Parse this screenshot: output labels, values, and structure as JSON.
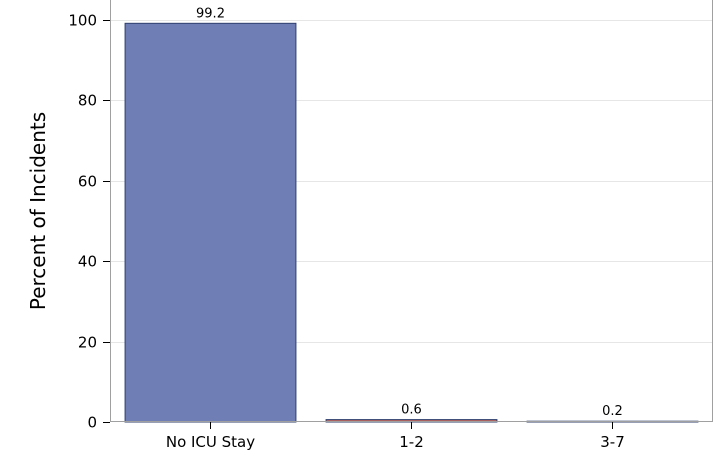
{
  "chart_data": {
    "type": "bar",
    "title": "",
    "xlabel": "",
    "ylabel": "Percent of Incidents",
    "categories": [
      "No ICU Stay",
      "1-2",
      "3-7"
    ],
    "values": [
      99.2,
      0.6,
      0.2
    ],
    "data_labels": [
      "99.2",
      "0.6",
      "0.2"
    ],
    "ylim": [
      0,
      105
    ],
    "yticks": [
      0,
      20,
      40,
      60,
      80,
      100
    ],
    "grid": true,
    "bar_colors": [
      "#6f7fb5",
      "#b5645e",
      "#6fad9a"
    ],
    "bar_edge_color": "#2f3f6f"
  }
}
